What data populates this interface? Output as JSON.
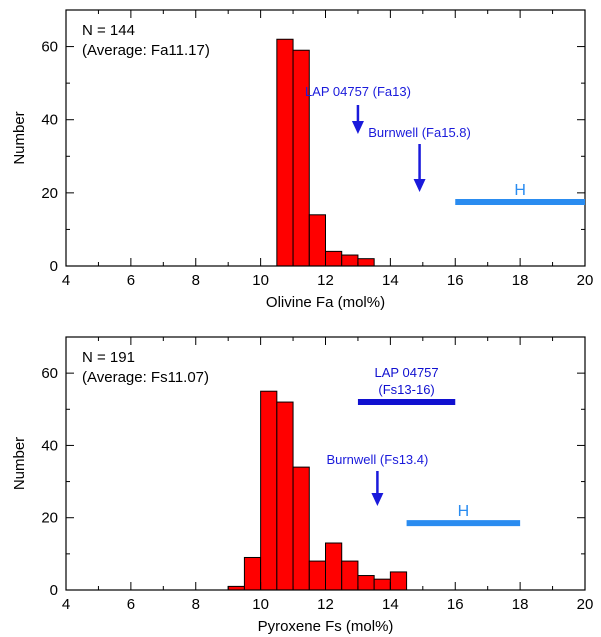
{
  "chart_data": [
    {
      "type": "bar",
      "xlabel": "Olivine Fa (mol%)",
      "ylabel": "Number",
      "xlim": [
        4,
        20
      ],
      "ylim": [
        0,
        70
      ],
      "xticks": [
        4,
        6,
        8,
        10,
        12,
        14,
        16,
        18,
        20
      ],
      "yticks": [
        0,
        20,
        40,
        60
      ],
      "bin_width": 0.5,
      "bars": [
        {
          "x": 10.5,
          "value": 62
        },
        {
          "x": 11.0,
          "value": 59
        },
        {
          "x": 11.5,
          "value": 14
        },
        {
          "x": 12.0,
          "value": 4
        },
        {
          "x": 12.5,
          "value": 3
        },
        {
          "x": 13.0,
          "value": 2
        }
      ],
      "notes": [
        "N = 144",
        "(Average: Fa11.17)"
      ],
      "annotations": [
        {
          "type": "arrow",
          "lines": [
            "LAP 04757 (Fa13)"
          ],
          "x": 13.0,
          "color": "#1a1adb"
        },
        {
          "type": "arrow",
          "lines": [
            "Burnwell (Fa15.8)"
          ],
          "x": 14.9,
          "color": "#1a1adb"
        }
      ],
      "ranges": [
        {
          "label": "H",
          "x_start": 16,
          "x_end": 20,
          "y": 17.5,
          "color": "#2a8cf0"
        }
      ],
      "colors": {
        "bar_fill": "#ff0000",
        "bar_edge": "#000000"
      }
    },
    {
      "type": "bar",
      "xlabel": "Pyroxene Fs (mol%)",
      "ylabel": "Number",
      "xlim": [
        4,
        20
      ],
      "ylim": [
        0,
        70
      ],
      "xticks": [
        4,
        6,
        8,
        10,
        12,
        14,
        16,
        18,
        20
      ],
      "yticks": [
        0,
        20,
        40,
        60
      ],
      "bin_width": 0.5,
      "bars": [
        {
          "x": 9.0,
          "value": 1
        },
        {
          "x": 9.5,
          "value": 9
        },
        {
          "x": 10.0,
          "value": 55
        },
        {
          "x": 10.5,
          "value": 52
        },
        {
          "x": 11.0,
          "value": 34
        },
        {
          "x": 11.5,
          "value": 8
        },
        {
          "x": 12.0,
          "value": 13
        },
        {
          "x": 12.5,
          "value": 8
        },
        {
          "x": 13.0,
          "value": 4
        },
        {
          "x": 13.5,
          "value": 3
        },
        {
          "x": 14.0,
          "value": 5
        }
      ],
      "notes": [
        "N = 191",
        "(Average: Fs11.07)"
      ],
      "annotations": [
        {
          "type": "arrow",
          "lines": [
            "Burnwell (Fs13.4)"
          ],
          "x": 13.6,
          "color": "#1a1adb"
        }
      ],
      "ranges": [
        {
          "label": "LAP 04757",
          "sublabel": "(Fs13-16)",
          "x_start": 13,
          "x_end": 16,
          "y": 52,
          "color": "#1010d0"
        },
        {
          "label": "H",
          "x_start": 14.5,
          "x_end": 18,
          "y": 18.5,
          "color": "#2a8cf0"
        }
      ],
      "colors": {
        "bar_fill": "#ff0000",
        "bar_edge": "#000000"
      }
    }
  ]
}
